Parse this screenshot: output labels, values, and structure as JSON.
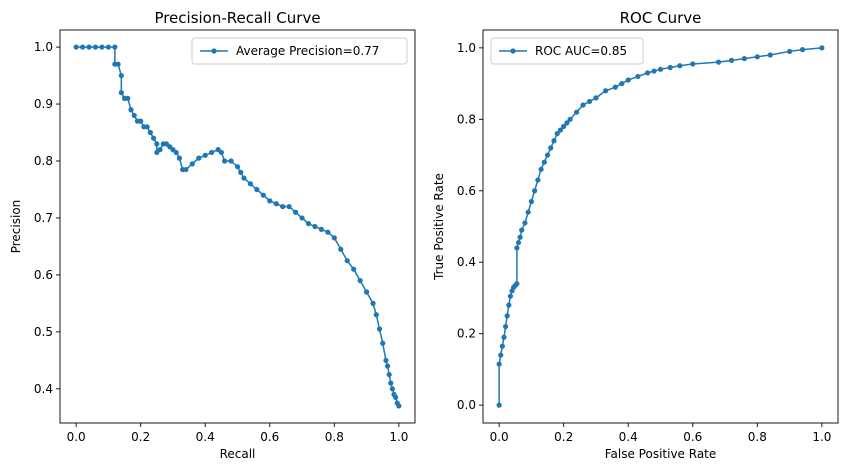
{
  "chart_data": [
    {
      "type": "line",
      "title": "Precision-Recall Curve",
      "xlabel": "Recall",
      "ylabel": "Precision",
      "xlim": [
        -0.05,
        1.05
      ],
      "ylim": [
        0.34,
        1.03
      ],
      "xticks": [
        "0.0",
        "0.2",
        "0.4",
        "0.6",
        "0.8",
        "1.0"
      ],
      "yticks": [
        "0.4",
        "0.5",
        "0.6",
        "0.7",
        "0.8",
        "0.9",
        "1.0"
      ],
      "grid": false,
      "legend_position": "top-right",
      "series": [
        {
          "name": "Average Precision=0.77",
          "color": "#1f77b4",
          "marker": "circle",
          "x": [
            0.0,
            0.02,
            0.04,
            0.06,
            0.08,
            0.1,
            0.12,
            0.12,
            0.13,
            0.14,
            0.14,
            0.15,
            0.16,
            0.17,
            0.18,
            0.19,
            0.2,
            0.21,
            0.22,
            0.23,
            0.24,
            0.25,
            0.25,
            0.26,
            0.27,
            0.28,
            0.29,
            0.3,
            0.31,
            0.32,
            0.33,
            0.34,
            0.36,
            0.38,
            0.4,
            0.42,
            0.44,
            0.45,
            0.46,
            0.48,
            0.5,
            0.51,
            0.52,
            0.54,
            0.56,
            0.58,
            0.6,
            0.62,
            0.64,
            0.66,
            0.68,
            0.7,
            0.72,
            0.74,
            0.76,
            0.78,
            0.8,
            0.82,
            0.84,
            0.86,
            0.88,
            0.9,
            0.92,
            0.93,
            0.94,
            0.95,
            0.96,
            0.965,
            0.97,
            0.975,
            0.98,
            0.985,
            0.99,
            0.995,
            1.0
          ],
          "y": [
            1.0,
            1.0,
            1.0,
            1.0,
            1.0,
            1.0,
            1.0,
            0.97,
            0.97,
            0.95,
            0.92,
            0.91,
            0.91,
            0.89,
            0.88,
            0.87,
            0.87,
            0.86,
            0.86,
            0.85,
            0.84,
            0.83,
            0.815,
            0.82,
            0.83,
            0.83,
            0.825,
            0.82,
            0.815,
            0.805,
            0.785,
            0.785,
            0.795,
            0.805,
            0.81,
            0.815,
            0.82,
            0.815,
            0.8,
            0.8,
            0.79,
            0.78,
            0.77,
            0.76,
            0.75,
            0.74,
            0.73,
            0.725,
            0.72,
            0.72,
            0.71,
            0.7,
            0.69,
            0.685,
            0.68,
            0.675,
            0.665,
            0.645,
            0.625,
            0.61,
            0.59,
            0.57,
            0.55,
            0.53,
            0.505,
            0.48,
            0.45,
            0.44,
            0.425,
            0.41,
            0.4,
            0.39,
            0.385,
            0.375,
            0.37
          ]
        }
      ]
    },
    {
      "type": "line",
      "title": "ROC Curve",
      "xlabel": "False Positive Rate",
      "ylabel": "True Positive Rate",
      "xlim": [
        -0.05,
        1.05
      ],
      "ylim": [
        -0.05,
        1.05
      ],
      "xticks": [
        "0.0",
        "0.2",
        "0.4",
        "0.6",
        "0.8",
        "1.0"
      ],
      "yticks": [
        "0.0",
        "0.2",
        "0.4",
        "0.6",
        "0.8",
        "1.0"
      ],
      "grid": false,
      "legend_position": "top-left",
      "series": [
        {
          "name": "ROC AUC=0.85",
          "color": "#1f77b4",
          "marker": "circle",
          "x": [
            0.0,
            0.0,
            0.005,
            0.01,
            0.015,
            0.02,
            0.025,
            0.03,
            0.035,
            0.04,
            0.045,
            0.05,
            0.055,
            0.055,
            0.06,
            0.065,
            0.07,
            0.08,
            0.09,
            0.1,
            0.11,
            0.12,
            0.13,
            0.14,
            0.15,
            0.16,
            0.17,
            0.18,
            0.19,
            0.2,
            0.21,
            0.22,
            0.24,
            0.26,
            0.28,
            0.3,
            0.33,
            0.36,
            0.38,
            0.4,
            0.43,
            0.46,
            0.48,
            0.5,
            0.53,
            0.56,
            0.6,
            0.68,
            0.72,
            0.76,
            0.8,
            0.84,
            0.9,
            0.94,
            1.0
          ],
          "y": [
            0.0,
            0.115,
            0.14,
            0.165,
            0.19,
            0.22,
            0.25,
            0.28,
            0.305,
            0.32,
            0.33,
            0.335,
            0.34,
            0.44,
            0.455,
            0.47,
            0.49,
            0.51,
            0.54,
            0.57,
            0.6,
            0.63,
            0.66,
            0.68,
            0.7,
            0.72,
            0.74,
            0.76,
            0.77,
            0.78,
            0.79,
            0.8,
            0.82,
            0.84,
            0.85,
            0.86,
            0.88,
            0.89,
            0.9,
            0.91,
            0.92,
            0.93,
            0.935,
            0.94,
            0.945,
            0.95,
            0.955,
            0.96,
            0.965,
            0.97,
            0.975,
            0.98,
            0.99,
            0.995,
            1.0
          ]
        }
      ]
    }
  ]
}
